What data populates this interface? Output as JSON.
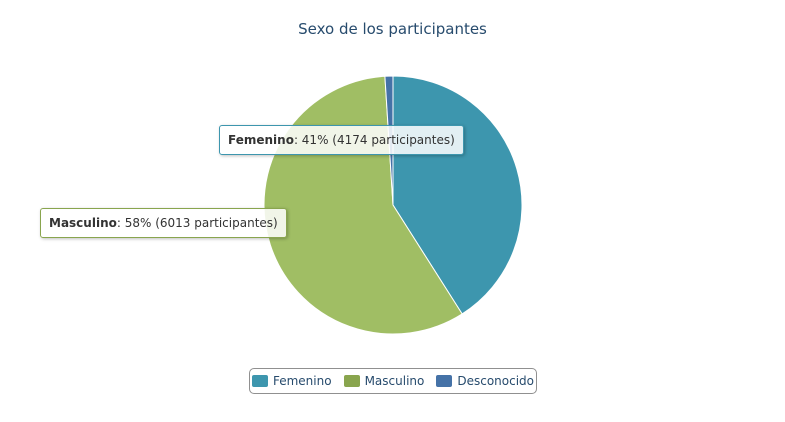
{
  "chart_data": {
    "type": "pie",
    "title": "Sexo de los participantes",
    "slices": [
      {
        "name": "Femenino",
        "percent": 41,
        "count": 4174,
        "color": "#3d96ae"
      },
      {
        "name": "Masculino",
        "percent": 58,
        "count": 6013,
        "color": "#a0be64"
      },
      {
        "name": "Desconocido",
        "percent": 1,
        "color": "#4572a7"
      }
    ],
    "tooltips": [
      {
        "name": "Femenino",
        "text": ": 41% (4174 participantes)"
      },
      {
        "name": "Masculino",
        "text": ": 58% (6013 participantes)"
      }
    ],
    "legend": [
      {
        "label": "Femenino",
        "color": "#3d96ae"
      },
      {
        "label": "Masculino",
        "color": "#89a54e"
      },
      {
        "label": "Desconocido",
        "color": "#4572a7"
      }
    ],
    "legend_position": "bottom-center"
  }
}
